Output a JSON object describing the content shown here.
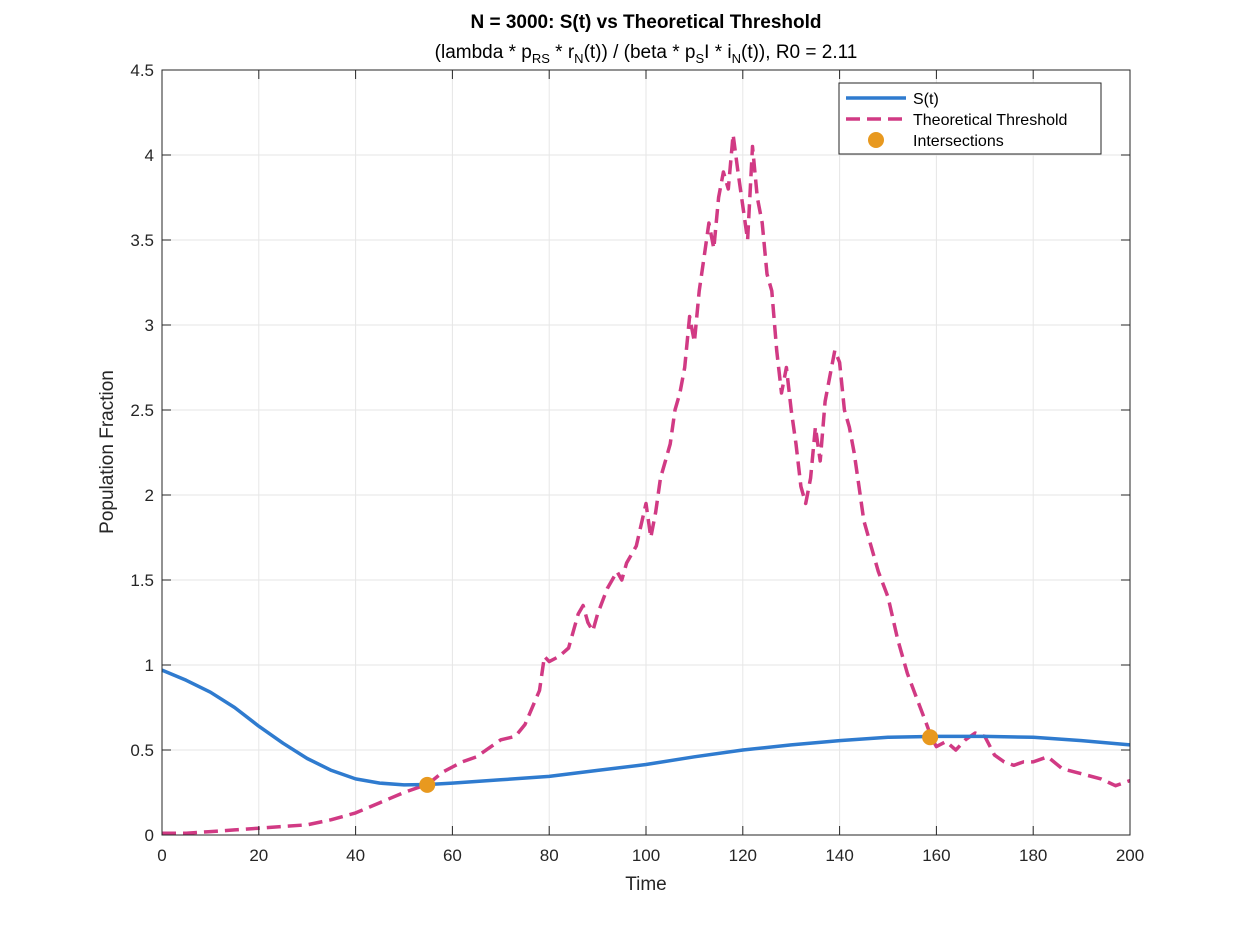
{
  "chart_data": {
    "type": "line",
    "title": "N = 3000: S(t) vs Theoretical Threshold",
    "subtitle": {
      "p1": "(lambda  *  p",
      "s1": "RS",
      "p2": "  *  r",
      "s2": "N",
      "p3": "(t))  /  (beta  *  p",
      "s3": "S",
      "p4": "I  *  i",
      "s4": "N",
      "p5": "(t)),  R0  =  2.11"
    },
    "xlabel": "Time",
    "ylabel": "Population Fraction",
    "xlim": [
      0,
      200
    ],
    "ylim": [
      0,
      4.5
    ],
    "xticks": [
      "0",
      "20",
      "40",
      "60",
      "80",
      "100",
      "120",
      "140",
      "160",
      "180",
      "200"
    ],
    "yticks": [
      "0",
      "0.5",
      "1",
      "1.5",
      "2",
      "2.5",
      "3",
      "3.5",
      "4",
      "4.5"
    ],
    "grid": true,
    "legend_position": "top-right",
    "series": [
      {
        "name": "S(t)",
        "style": "solid",
        "color": "#2f7bcf",
        "x": [
          0,
          5,
          10,
          15,
          20,
          25,
          30,
          35,
          40,
          45,
          50,
          55,
          60,
          70,
          80,
          90,
          100,
          110,
          120,
          130,
          140,
          150,
          160,
          170,
          180,
          190,
          200
        ],
        "y": [
          0.97,
          0.91,
          0.84,
          0.75,
          0.64,
          0.54,
          0.45,
          0.38,
          0.33,
          0.305,
          0.295,
          0.297,
          0.305,
          0.325,
          0.345,
          0.38,
          0.415,
          0.46,
          0.5,
          0.53,
          0.555,
          0.575,
          0.58,
          0.58,
          0.575,
          0.555,
          0.53
        ]
      },
      {
        "name": "Theoretical Threshold",
        "style": "dashed",
        "color": "#d13a84",
        "x": [
          0,
          5,
          10,
          15,
          20,
          25,
          30,
          35,
          40,
          45,
          50,
          55,
          58,
          60,
          62,
          65,
          68,
          70,
          73,
          75,
          78,
          79,
          80,
          82,
          84,
          86,
          87,
          88,
          89,
          90,
          92,
          94,
          95,
          96,
          98,
          100,
          101,
          102,
          103,
          104,
          105,
          106,
          107,
          108,
          109,
          110,
          111,
          112,
          113,
          114,
          115,
          116,
          117,
          118,
          119,
          120,
          121,
          122,
          123,
          124,
          125,
          126,
          127,
          128,
          129,
          130,
          131,
          132,
          133,
          134,
          135,
          136,
          137,
          138,
          139,
          140,
          141,
          142,
          143,
          144,
          145,
          146,
          148,
          150,
          152,
          154,
          156,
          158,
          159,
          160,
          162,
          164,
          166,
          168,
          170,
          172,
          174,
          176,
          178,
          180,
          183,
          186,
          190,
          194,
          197,
          200
        ],
        "y": [
          0.01,
          0.01,
          0.02,
          0.03,
          0.04,
          0.05,
          0.06,
          0.09,
          0.13,
          0.19,
          0.25,
          0.3,
          0.37,
          0.4,
          0.43,
          0.46,
          0.52,
          0.56,
          0.58,
          0.65,
          0.85,
          1.05,
          1.02,
          1.05,
          1.1,
          1.3,
          1.35,
          1.25,
          1.2,
          1.3,
          1.45,
          1.55,
          1.5,
          1.6,
          1.7,
          1.95,
          1.75,
          1.9,
          2.1,
          2.2,
          2.3,
          2.5,
          2.6,
          2.75,
          3.05,
          2.9,
          3.2,
          3.4,
          3.6,
          3.45,
          3.75,
          3.9,
          3.8,
          4.12,
          3.9,
          3.7,
          3.5,
          4.05,
          3.75,
          3.6,
          3.3,
          3.2,
          2.85,
          2.6,
          2.75,
          2.5,
          2.3,
          2.05,
          1.95,
          2.1,
          2.4,
          2.2,
          2.55,
          2.7,
          2.85,
          2.78,
          2.5,
          2.4,
          2.25,
          2.05,
          1.85,
          1.75,
          1.55,
          1.4,
          1.15,
          0.95,
          0.8,
          0.65,
          0.57,
          0.52,
          0.55,
          0.5,
          0.56,
          0.6,
          0.58,
          0.47,
          0.43,
          0.41,
          0.43,
          0.43,
          0.46,
          0.39,
          0.36,
          0.33,
          0.29,
          0.32
        ]
      }
    ],
    "intersections": {
      "name": "Intersections",
      "color": "#e8991f",
      "points": [
        {
          "x": 54.8,
          "y": 0.295
        },
        {
          "x": 158.7,
          "y": 0.575
        }
      ]
    }
  }
}
